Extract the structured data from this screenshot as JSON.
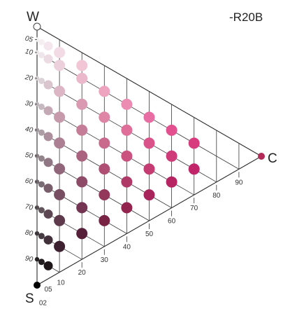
{
  "title": "-R20B",
  "corners": {
    "white": "W",
    "black": "S",
    "chromatic": "C"
  },
  "whiteness_scale": [
    "05",
    "10",
    "20",
    "30",
    "40",
    "50",
    "60",
    "70",
    "80",
    "90"
  ],
  "chromaticness_scale": [
    "02",
    "05",
    "10",
    "20",
    "30",
    "40",
    "50",
    "60",
    "70",
    "80",
    "90"
  ],
  "colors": {
    "corner_white": "#ffffff",
    "corner_black": "#000000",
    "corner_chromatic": "#b22a57"
  },
  "samples": [
    {
      "c": 0,
      "s": 5,
      "color": "#f2f0f1"
    },
    {
      "c": 0,
      "s": 10,
      "color": "#e9e6e8"
    },
    {
      "c": 0,
      "s": 20,
      "color": "#d5d0d3"
    },
    {
      "c": 0,
      "s": 30,
      "color": "#bdb6ba"
    },
    {
      "c": 0,
      "s": 40,
      "color": "#a39ba0"
    },
    {
      "c": 0,
      "s": 50,
      "color": "#8a8187"
    },
    {
      "c": 0,
      "s": 60,
      "color": "#71686e"
    },
    {
      "c": 0,
      "s": 70,
      "color": "#5a5257"
    },
    {
      "c": 0,
      "s": 80,
      "color": "#403a3e"
    },
    {
      "c": 0,
      "s": 90,
      "color": "#262224"
    },
    {
      "c": 2,
      "s": 5,
      "color": "#f5eff2"
    },
    {
      "c": 2,
      "s": 10,
      "color": "#eee6ea"
    },
    {
      "c": 2,
      "s": 20,
      "color": "#dcd1d6"
    },
    {
      "c": 2,
      "s": 30,
      "color": "#c6b8bf"
    },
    {
      "c": 2,
      "s": 40,
      "color": "#ad9ea5"
    },
    {
      "c": 2,
      "s": 50,
      "color": "#93848b"
    },
    {
      "c": 2,
      "s": 60,
      "color": "#7a6c73"
    },
    {
      "c": 2,
      "s": 70,
      "color": "#61555b"
    },
    {
      "c": 2,
      "s": 80,
      "color": "#463c41"
    },
    {
      "c": 2,
      "s": 90,
      "color": "#241e21"
    },
    {
      "c": 5,
      "s": 5,
      "color": "#f4e6ec"
    },
    {
      "c": 5,
      "s": 10,
      "color": "#eddbe3"
    },
    {
      "c": 5,
      "s": 20,
      "color": "#dac4ce"
    },
    {
      "c": 5,
      "s": 30,
      "color": "#c4a9b5"
    },
    {
      "c": 5,
      "s": 40,
      "color": "#ab8f9c"
    },
    {
      "c": 5,
      "s": 50,
      "color": "#917683"
    },
    {
      "c": 5,
      "s": 60,
      "color": "#775e6a"
    },
    {
      "c": 5,
      "s": 70,
      "color": "#5d4752"
    },
    {
      "c": 5,
      "s": 80,
      "color": "#42303a"
    },
    {
      "c": 5,
      "s": 90,
      "color": "#1e1519"
    },
    {
      "c": 10,
      "s": 5,
      "color": "#f3dbe5"
    },
    {
      "c": 10,
      "s": 10,
      "color": "#ecd0dc"
    },
    {
      "c": 10,
      "s": 20,
      "color": "#dcb6c5"
    },
    {
      "c": 10,
      "s": 30,
      "color": "#c69aab"
    },
    {
      "c": 10,
      "s": 40,
      "color": "#ac7f92"
    },
    {
      "c": 10,
      "s": 50,
      "color": "#92667a"
    },
    {
      "c": 10,
      "s": 60,
      "color": "#784f62"
    },
    {
      "c": 10,
      "s": 70,
      "color": "#5d394b"
    },
    {
      "c": 10,
      "s": 80,
      "color": "#3e2130"
    },
    {
      "c": 20,
      "s": 5,
      "color": "#f3c6d6"
    },
    {
      "c": 20,
      "s": 10,
      "color": "#ebb8cb"
    },
    {
      "c": 20,
      "s": 20,
      "color": "#d99ab2"
    },
    {
      "c": 20,
      "s": 30,
      "color": "#c57d97"
    },
    {
      "c": 20,
      "s": 40,
      "color": "#aa637f"
    },
    {
      "c": 20,
      "s": 50,
      "color": "#8e4b67"
    },
    {
      "c": 20,
      "s": 60,
      "color": "#733551"
    },
    {
      "c": 20,
      "s": 70,
      "color": "#57203a"
    },
    {
      "c": 30,
      "s": 10,
      "color": "#eea3bf"
    },
    {
      "c": 30,
      "s": 20,
      "color": "#df86a6"
    },
    {
      "c": 30,
      "s": 30,
      "color": "#c96a8d"
    },
    {
      "c": 30,
      "s": 40,
      "color": "#b04f74"
    },
    {
      "c": 30,
      "s": 50,
      "color": "#93375b"
    },
    {
      "c": 30,
      "s": 60,
      "color": "#782343"
    },
    {
      "c": 40,
      "s": 10,
      "color": "#ec8cb2"
    },
    {
      "c": 40,
      "s": 20,
      "color": "#df6e98"
    },
    {
      "c": 40,
      "s": 30,
      "color": "#cb527f"
    },
    {
      "c": 40,
      "s": 40,
      "color": "#b03a67"
    },
    {
      "c": 40,
      "s": 50,
      "color": "#93244e"
    },
    {
      "c": 50,
      "s": 10,
      "color": "#e86da2"
    },
    {
      "c": 50,
      "s": 20,
      "color": "#d9538a"
    },
    {
      "c": 50,
      "s": 30,
      "color": "#c43c72"
    },
    {
      "c": 50,
      "s": 40,
      "color": "#a8255b"
    },
    {
      "c": 60,
      "s": 10,
      "color": "#e3508f"
    },
    {
      "c": 60,
      "s": 20,
      "color": "#cf3a79"
    },
    {
      "c": 60,
      "s": 30,
      "color": "#b72462"
    },
    {
      "c": 70,
      "s": 10,
      "color": "#d83a7e"
    },
    {
      "c": 70,
      "s": 20,
      "color": "#c2246a"
    }
  ]
}
